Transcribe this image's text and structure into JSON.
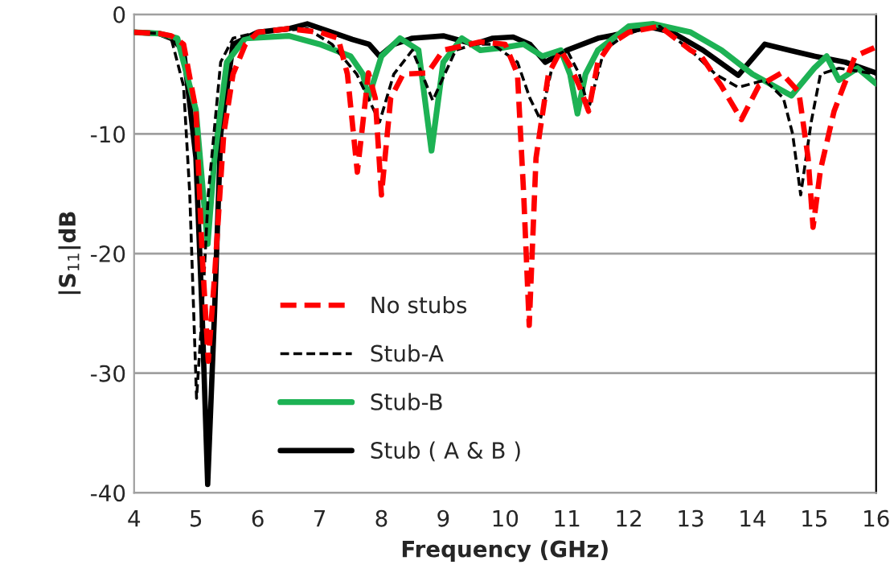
{
  "chart_data": {
    "type": "line",
    "xlabel": "Frequency (GHz)",
    "ylabel": "|S$_{11}$|dB",
    "xlim": [
      4,
      16
    ],
    "xticks": [
      4,
      5,
      6,
      7,
      8,
      9,
      10,
      11,
      12,
      13,
      14,
      15,
      16
    ],
    "ylim": [
      -40,
      0
    ],
    "yticks": [
      -40,
      -30,
      -20,
      -10,
      0
    ],
    "grid": "y",
    "legend": "bottom left",
    "marker": "none",
    "series": [
      {
        "name": "No stubs",
        "color": "#ff0000",
        "line_style": "dashed",
        "x": [
          4,
          4.4,
          4.6,
          4.8,
          5.0,
          5.1,
          5.2,
          5.3,
          5.45,
          5.6,
          5.8,
          6.0,
          6.5,
          7.0,
          7.3,
          7.45,
          7.61,
          7.79,
          7.9,
          8.0,
          8.15,
          8.35,
          8.75,
          9.0,
          9.6,
          10.0,
          10.2,
          10.3,
          10.39,
          10.5,
          10.7,
          10.9,
          11.04,
          11.2,
          11.35,
          11.5,
          11.7,
          12.0,
          12.5,
          13.0,
          13.17,
          13.5,
          13.82,
          14.1,
          14.47,
          14.75,
          14.9,
          14.98,
          15.1,
          15.32,
          15.66,
          15.97
        ],
        "values": [
          -1.5,
          -1.6,
          -1.8,
          -2.5,
          -8,
          -20,
          -29,
          -22,
          -10,
          -5,
          -2.5,
          -1.5,
          -1.2,
          -1.5,
          -2,
          -5,
          -13.2,
          -4.9,
          -7,
          -15.1,
          -7,
          -5,
          -4.9,
          -3,
          -2.3,
          -2.5,
          -5,
          -15,
          -26,
          -12,
          -5,
          -3,
          -4.2,
          -6,
          -8.1,
          -4,
          -2.5,
          -1.5,
          -1,
          -3,
          -3.5,
          -6,
          -8.8,
          -6,
          -4.9,
          -6.5,
          -12,
          -17.8,
          -13,
          -8.1,
          -3.5,
          -2.8
        ]
      },
      {
        "name": "Stub-A",
        "color": "#000000",
        "line_style": "dashed",
        "x": [
          4,
          4.4,
          4.6,
          4.8,
          4.9,
          5.01,
          5.1,
          5.2,
          5.4,
          5.6,
          6.0,
          6.8,
          7.2,
          7.6,
          7.97,
          8.2,
          8.5,
          8.83,
          9.2,
          9.5,
          9.8,
          10.2,
          10.4,
          10.57,
          10.8,
          11.0,
          11.2,
          11.35,
          11.6,
          12.0,
          12.5,
          13.0,
          13.4,
          13.77,
          14.2,
          14.5,
          14.65,
          14.78,
          14.95,
          15.1,
          15.4,
          16.0
        ],
        "values": [
          -1.5,
          -1.6,
          -2,
          -6,
          -15,
          -32.1,
          -25,
          -15,
          -4,
          -2,
          -1.5,
          -1.2,
          -2.5,
          -5,
          -9,
          -5,
          -3,
          -7.2,
          -3,
          -2.5,
          -2.5,
          -4,
          -7,
          -8.8,
          -3.5,
          -3,
          -5,
          -7.9,
          -3,
          -1.5,
          -1,
          -3,
          -5,
          -6.1,
          -5.5,
          -7,
          -10,
          -15.1,
          -9,
          -5,
          -4.5,
          -5
        ]
      },
      {
        "name": "Stub-B",
        "color": "#1db254",
        "line_style": "solid",
        "x": [
          4,
          4.4,
          4.7,
          5.0,
          5.1,
          5.19,
          5.3,
          5.5,
          5.8,
          6.5,
          7.0,
          7.5,
          7.7,
          7.79,
          8.0,
          8.3,
          8.6,
          8.81,
          9.0,
          9.3,
          9.6,
          9.95,
          10.3,
          10.6,
          10.9,
          11.05,
          11.17,
          11.3,
          11.5,
          12.0,
          12.4,
          13.0,
          13.5,
          14.0,
          14.63,
          15.0,
          15.2,
          15.4,
          15.7,
          16.0
        ],
        "values": [
          -1.5,
          -1.6,
          -2,
          -8,
          -14,
          -19.2,
          -12,
          -4,
          -2,
          -1.8,
          -2.5,
          -3.5,
          -5,
          -7,
          -3.5,
          -2,
          -3,
          -11.4,
          -4,
          -2,
          -3,
          -2.8,
          -2.5,
          -3.5,
          -3,
          -5,
          -8.3,
          -5,
          -3,
          -1,
          -0.8,
          -1.5,
          -3,
          -5,
          -6.8,
          -4.5,
          -3.5,
          -5.5,
          -4.5,
          -5.8
        ]
      },
      {
        "name": "Stub ( A & B )",
        "color": "#000000",
        "line_style": "solid",
        "x": [
          4,
          4.4,
          4.6,
          4.8,
          5.0,
          5.1,
          5.19,
          5.3,
          5.4,
          5.6,
          6.0,
          6.5,
          6.8,
          7.2,
          7.53,
          7.8,
          7.97,
          8.2,
          8.5,
          9.0,
          9.5,
          9.8,
          10.13,
          10.4,
          10.65,
          11.0,
          11.5,
          12.0,
          12.3,
          12.7,
          13.2,
          13.77,
          14.2,
          14.6,
          15.0,
          15.5,
          16.0
        ],
        "values": [
          -1.5,
          -1.6,
          -2,
          -3,
          -12,
          -25,
          -39.3,
          -25,
          -10,
          -2.5,
          -1.5,
          -1.2,
          -0.8,
          -1.5,
          -2.1,
          -2.5,
          -3.5,
          -2.5,
          -2,
          -1.8,
          -2.5,
          -2,
          -1.9,
          -2.5,
          -4,
          -3,
          -2,
          -1.5,
          -1,
          -1.5,
          -3,
          -5.1,
          -2.5,
          -3,
          -3.5,
          -4,
          -4.9
        ]
      }
    ]
  }
}
